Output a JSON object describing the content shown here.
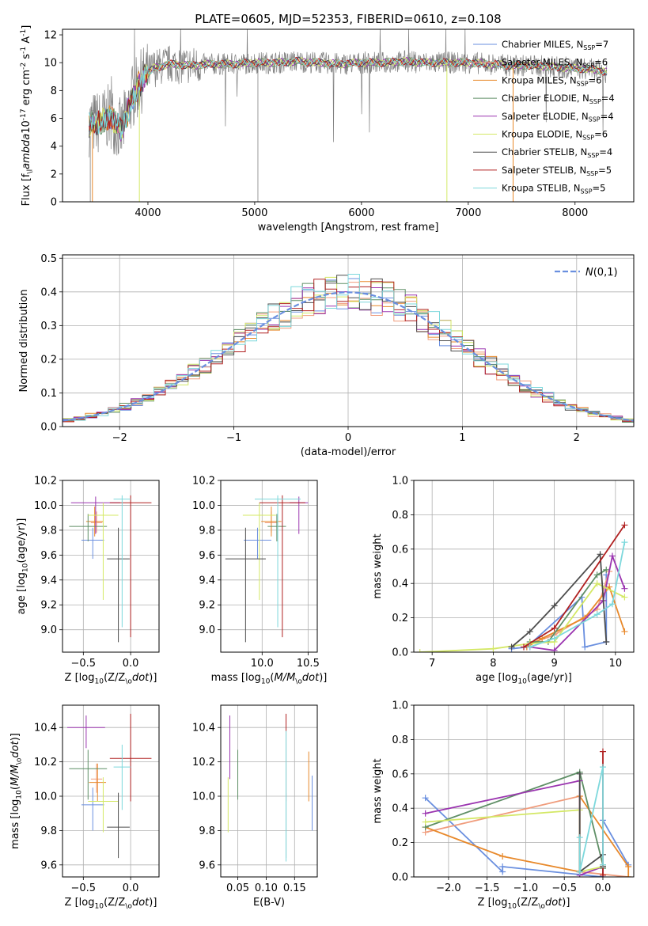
{
  "colors": {
    "series": [
      "#6a8fdf",
      "#f09c7c",
      "#e8892b",
      "#5f8f66",
      "#9b35b0",
      "#d4e866",
      "#4d4d4d",
      "#b02020",
      "#7dd8dc"
    ],
    "norm": "#6a8fdf"
  },
  "chart_data": [
    {
      "id": "spectrum",
      "type": "line",
      "title": "PLATE=0605, MJD=52353, FIBERID=0610, z=0.108",
      "xlabel": "wavelength [Angstrom, rest frame]",
      "ylabel": "Flux [f$_\\lambda$10$^{-17}$ erg cm$^{-2}$ s$^{-1}$ A$^{-1}$]",
      "xlim": [
        3200,
        8550
      ],
      "ylim": [
        0,
        12.4
      ],
      "xticks": [
        4000,
        5000,
        6000,
        7000,
        8000
      ],
      "yticks": [
        0,
        2,
        4,
        6,
        8,
        10,
        12
      ],
      "legend_position": "right",
      "legend": [
        "Chabrier MILES, N$_{SSP}$=7",
        "Salpeter MILES, N$_{SSP}$=6",
        "Kroupa MILES, N$_{SSP}$=6",
        "Chabrier ELODIE, N$_{SSP}$=4",
        "Salpeter ELODIE, N$_{SSP}$=4",
        "Kroupa ELODIE, N$_{SSP}$=6",
        "Chabrier STELIB, N$_{SSP}$=4",
        "Salpeter STELIB, N$_{SSP}$=5",
        "Kroupa STELIB, N$_{SSP}$=5"
      ],
      "data_series": {
        "x": [
          3450,
          3550,
          3650,
          3750,
          3850,
          3950,
          4050,
          4200,
          4400,
          4600,
          4800,
          5000,
          5200,
          5400,
          5600,
          5800,
          6000,
          6200,
          6400,
          6600,
          6800,
          7000,
          7200,
          7400,
          7600,
          7800,
          8000,
          8200,
          8300
        ],
        "y": [
          5.6,
          5.7,
          6.2,
          5.0,
          7.5,
          8.8,
          9.6,
          9.9,
          9.8,
          9.9,
          9.9,
          10.0,
          10.0,
          10.1,
          10.0,
          9.9,
          10.0,
          10.0,
          10.1,
          10.0,
          10.0,
          10.0,
          9.9,
          9.8,
          9.8,
          9.7,
          9.6,
          9.5,
          9.3
        ]
      }
    },
    {
      "id": "residuals",
      "type": "histogram",
      "xlabel": "(data-model)/error",
      "ylabel": "Normed distribution",
      "xlim": [
        -2.5,
        2.5
      ],
      "ylim": [
        0,
        0.51
      ],
      "xticks": [
        -2,
        -1,
        0,
        1,
        2
      ],
      "yticks": [
        0.0,
        0.1,
        0.2,
        0.3,
        0.4,
        0.5
      ],
      "legend": [
        "$\\mathcal{N}(0,1)$"
      ],
      "legend_position": "top-right",
      "bin_width": 0.1
    },
    {
      "id": "age_vs_Z",
      "type": "errorbar",
      "xlabel": "Z [log$_{10}$(Z/Z$_\\odot$)]",
      "ylabel": "age  [log$_{10}$($age/yr$)]",
      "xlim": [
        -0.72,
        0.3
      ],
      "ylim": [
        8.82,
        10.2
      ],
      "xticks": [
        -0.5,
        0.0
      ],
      "yticks": [
        9.0,
        9.2,
        9.4,
        9.6,
        9.8,
        10.0,
        10.2
      ],
      "points": [
        {
          "x": -0.4,
          "y": 9.72,
          "xerr": 0.12,
          "yerr": [
            0.15,
            0.1
          ]
        },
        {
          "x": -0.36,
          "y": 9.86,
          "xerr": 0.06,
          "yerr": [
            0.08,
            0.09
          ]
        },
        {
          "x": -0.38,
          "y": 9.87,
          "xerr": 0.09,
          "yerr": [
            0.12,
            0.12
          ]
        },
        {
          "x": -0.45,
          "y": 9.83,
          "xerr": 0.2,
          "yerr": [
            0.12,
            0.1
          ]
        },
        {
          "x": -0.37,
          "y": 10.02,
          "xerr": 0.26,
          "yerr": [
            0.25,
            0.05
          ]
        },
        {
          "x": -0.29,
          "y": 9.92,
          "xerr": 0.16,
          "yerr": [
            0.68,
            0.1
          ]
        },
        {
          "x": -0.13,
          "y": 9.57,
          "xerr": 0.12,
          "yerr": [
            0.67,
            0.25
          ]
        },
        {
          "x": 0.0,
          "y": 10.02,
          "xerr": 0.22,
          "yerr": [
            1.08,
            0.06
          ]
        },
        {
          "x": -0.09,
          "y": 10.05,
          "xerr": 0.09,
          "yerr": [
            1.03,
            0.03
          ]
        }
      ]
    },
    {
      "id": "age_vs_mass",
      "type": "errorbar",
      "xlabel": "mass [log$_{10}$($M/M_\\odot$)]",
      "ylabel": "",
      "xlim": [
        9.55,
        10.6
      ],
      "ylim": [
        8.82,
        10.2
      ],
      "xticks": [
        10.0,
        10.5
      ],
      "yticks": [
        9.0,
        9.2,
        9.4,
        9.6,
        9.8,
        10.0,
        10.2
      ],
      "points": [
        {
          "x": 9.95,
          "y": 9.72,
          "xerr": 0.15,
          "yerr": [
            0.15,
            0.1
          ]
        },
        {
          "x": 10.1,
          "y": 9.86,
          "xerr": 0.07,
          "yerr": [
            0.08,
            0.09
          ]
        },
        {
          "x": 10.1,
          "y": 9.87,
          "xerr": 0.11,
          "yerr": [
            0.12,
            0.12
          ]
        },
        {
          "x": 10.16,
          "y": 9.83,
          "xerr": 0.1,
          "yerr": [
            0.12,
            0.1
          ]
        },
        {
          "x": 10.4,
          "y": 10.02,
          "xerr": 0.1,
          "yerr": [
            0.25,
            0.05
          ]
        },
        {
          "x": 9.97,
          "y": 9.92,
          "xerr": 0.18,
          "yerr": [
            0.68,
            0.1
          ]
        },
        {
          "x": 9.82,
          "y": 9.57,
          "xerr": 0.22,
          "yerr": [
            0.67,
            0.25
          ]
        },
        {
          "x": 10.22,
          "y": 10.02,
          "xerr": 0.25,
          "yerr": [
            1.08,
            0.06
          ]
        },
        {
          "x": 10.17,
          "y": 10.05,
          "xerr": 0.25,
          "yerr": [
            1.03,
            0.03
          ]
        }
      ]
    },
    {
      "id": "weight_vs_age",
      "type": "line",
      "xlabel": "age  [log$_{10}$($age/yr$)]",
      "ylabel": "mass weight",
      "xlim": [
        6.7,
        10.3
      ],
      "ylim": [
        0,
        1.0
      ],
      "xticks": [
        7,
        8,
        9,
        10
      ],
      "yticks": [
        0.0,
        0.2,
        0.4,
        0.6,
        0.8,
        1.0
      ],
      "series": [
        {
          "x": [
            8.3,
            8.55,
            9.45,
            9.5,
            9.85,
            9.85
          ],
          "y": [
            0.02,
            0.03,
            0.32,
            0.03,
            0.06,
            0.45
          ]
        },
        {
          "x": [
            8.6,
            9.0,
            9.7,
            9.9
          ],
          "y": [
            0.05,
            0.1,
            0.25,
            0.47
          ]
        },
        {
          "x": [
            8.55,
            8.8,
            9.5,
            9.9,
            10.15
          ],
          "y": [
            0.03,
            0.08,
            0.2,
            0.38,
            0.12
          ]
        },
        {
          "x": [
            8.6,
            8.9,
            9.7,
            9.85
          ],
          "y": [
            0.06,
            0.06,
            0.45,
            0.48
          ]
        },
        {
          "x": [
            8.6,
            9.0,
            9.8,
            9.95,
            10.15
          ],
          "y": [
            0.03,
            0.01,
            0.3,
            0.56,
            0.37
          ]
        },
        {
          "x": [
            6.8,
            8.0,
            8.6,
            9.0,
            9.7,
            10.15
          ],
          "y": [
            0.0,
            0.02,
            0.05,
            0.06,
            0.4,
            0.32
          ]
        },
        {
          "x": [
            8.3,
            8.6,
            9.0,
            9.75,
            9.85
          ],
          "y": [
            0.03,
            0.12,
            0.27,
            0.57,
            0.06
          ]
        },
        {
          "x": [
            8.5,
            9.0,
            10.15
          ],
          "y": [
            0.03,
            0.14,
            0.74
          ]
        },
        {
          "x": [
            8.6,
            9.0,
            9.7,
            9.95,
            10.15
          ],
          "y": [
            0.03,
            0.08,
            0.22,
            0.28,
            0.64
          ]
        }
      ]
    },
    {
      "id": "mass_vs_Z",
      "type": "errorbar",
      "xlabel": "Z [log$_{10}$(Z/Z$_\\odot$)]",
      "ylabel": "mass [log$_{10}$($M/M_\\odot$)]",
      "xlim": [
        -0.72,
        0.3
      ],
      "ylim": [
        9.53,
        10.53
      ],
      "xticks": [
        -0.5,
        0.0
      ],
      "yticks": [
        9.6,
        9.8,
        10.0,
        10.2,
        10.4
      ],
      "points": [
        {
          "x": -0.4,
          "y": 9.95,
          "xerr": 0.12,
          "yerr": [
            0.15,
            0.1
          ]
        },
        {
          "x": -0.36,
          "y": 10.1,
          "xerr": 0.06,
          "yerr": [
            0.08,
            0.09
          ]
        },
        {
          "x": -0.35,
          "y": 10.08,
          "xerr": 0.09,
          "yerr": [
            0.11,
            0.11
          ]
        },
        {
          "x": -0.45,
          "y": 10.16,
          "xerr": 0.2,
          "yerr": [
            0.18,
            0.11
          ]
        },
        {
          "x": -0.47,
          "y": 10.4,
          "xerr": 0.2,
          "yerr": [
            0.12,
            0.07
          ]
        },
        {
          "x": -0.29,
          "y": 9.97,
          "xerr": 0.16,
          "yerr": [
            0.18,
            0.14
          ]
        },
        {
          "x": -0.13,
          "y": 9.82,
          "xerr": 0.12,
          "yerr": [
            0.18,
            0.2
          ]
        },
        {
          "x": 0.0,
          "y": 10.22,
          "xerr": 0.22,
          "yerr": [
            0.25,
            0.26
          ]
        },
        {
          "x": -0.09,
          "y": 10.17,
          "xerr": 0.09,
          "yerr": [
            0.25,
            0.13
          ]
        }
      ]
    },
    {
      "id": "mass_vs_EBV",
      "type": "errorbar",
      "xlabel": "E(B-V)",
      "ylabel": "",
      "xlim": [
        0.02,
        0.19
      ],
      "ylim": [
        9.53,
        10.53
      ],
      "xticks": [
        0.05,
        0.1,
        0.15
      ],
      "yticks": [
        9.6,
        9.8,
        10.0,
        10.2,
        10.4
      ],
      "points": [
        {
          "x": 0.181,
          "y": 9.95,
          "yerr": [
            0.15,
            0.17
          ]
        },
        {
          "x": 0.135,
          "y": 10.1,
          "yerr": [
            0.08,
            0.09
          ]
        },
        {
          "x": 0.175,
          "y": 10.08,
          "yerr": [
            0.11,
            0.18
          ]
        },
        {
          "x": 0.05,
          "y": 10.16,
          "yerr": [
            0.18,
            0.11
          ]
        },
        {
          "x": 0.036,
          "y": 10.4,
          "yerr": [
            0.3,
            0.07
          ]
        },
        {
          "x": 0.033,
          "y": 9.97,
          "yerr": [
            0.18,
            0.14
          ]
        },
        {
          "x": 0.135,
          "y": 9.82,
          "yerr": [
            0.18,
            0.2
          ]
        },
        {
          "x": 0.135,
          "y": 10.22,
          "yerr": [
            0.25,
            0.26
          ]
        },
        {
          "x": 0.135,
          "y": 10.17,
          "yerr": [
            0.55,
            0.21
          ]
        }
      ]
    },
    {
      "id": "weight_vs_Z",
      "type": "line",
      "xlabel": "Z [log$_{10}$(Z/Z$_\\odot$)]",
      "ylabel": "mass weight",
      "xlim": [
        -2.45,
        0.4
      ],
      "ylim": [
        0,
        1.0
      ],
      "xticks": [
        -2.0,
        -1.5,
        -1.0,
        -0.5,
        0.0
      ],
      "yticks": [
        0.0,
        0.2,
        0.4,
        0.6,
        0.8,
        1.0
      ],
      "series": [
        {
          "x": [
            -2.3,
            -1.3,
            -1.3,
            0.0,
            0.0,
            0.33
          ],
          "y": [
            0.46,
            0.03,
            0.06,
            0.0,
            0.33,
            0.07
          ]
        },
        {
          "x": [
            -2.3,
            -0.3,
            -0.3,
            0.33
          ],
          "y": [
            0.26,
            0.47,
            0.03,
            0.0
          ]
        },
        {
          "x": [
            -2.3,
            -1.3,
            -0.3,
            -0.3,
            0.33,
            0.33
          ],
          "y": [
            0.29,
            0.12,
            0.03,
            0.47,
            0.06,
            0.0
          ]
        },
        {
          "x": [
            -2.3,
            -0.3,
            0.0,
            0.0
          ],
          "y": [
            0.29,
            0.61,
            0.07,
            0.05
          ]
        },
        {
          "x": [
            -2.3,
            -0.3,
            -0.3,
            0.0
          ],
          "y": [
            0.37,
            0.56,
            0.01,
            0.06
          ]
        },
        {
          "x": [
            -2.3,
            -0.3,
            -0.3,
            0.0
          ],
          "y": [
            0.32,
            0.39,
            0.03,
            0.06
          ]
        },
        {
          "x": [
            -0.3,
            -0.3,
            0.0,
            0.0
          ],
          "y": [
            0.6,
            0.03,
            0.13,
            0.06
          ]
        },
        {
          "x": [
            0.0,
            0.0
          ],
          "y": [
            0.73,
            0.01
          ]
        },
        {
          "x": [
            -0.3,
            -0.3,
            0.0,
            0.0
          ],
          "y": [
            0.23,
            0.03,
            0.64,
            0.07
          ]
        }
      ]
    }
  ]
}
